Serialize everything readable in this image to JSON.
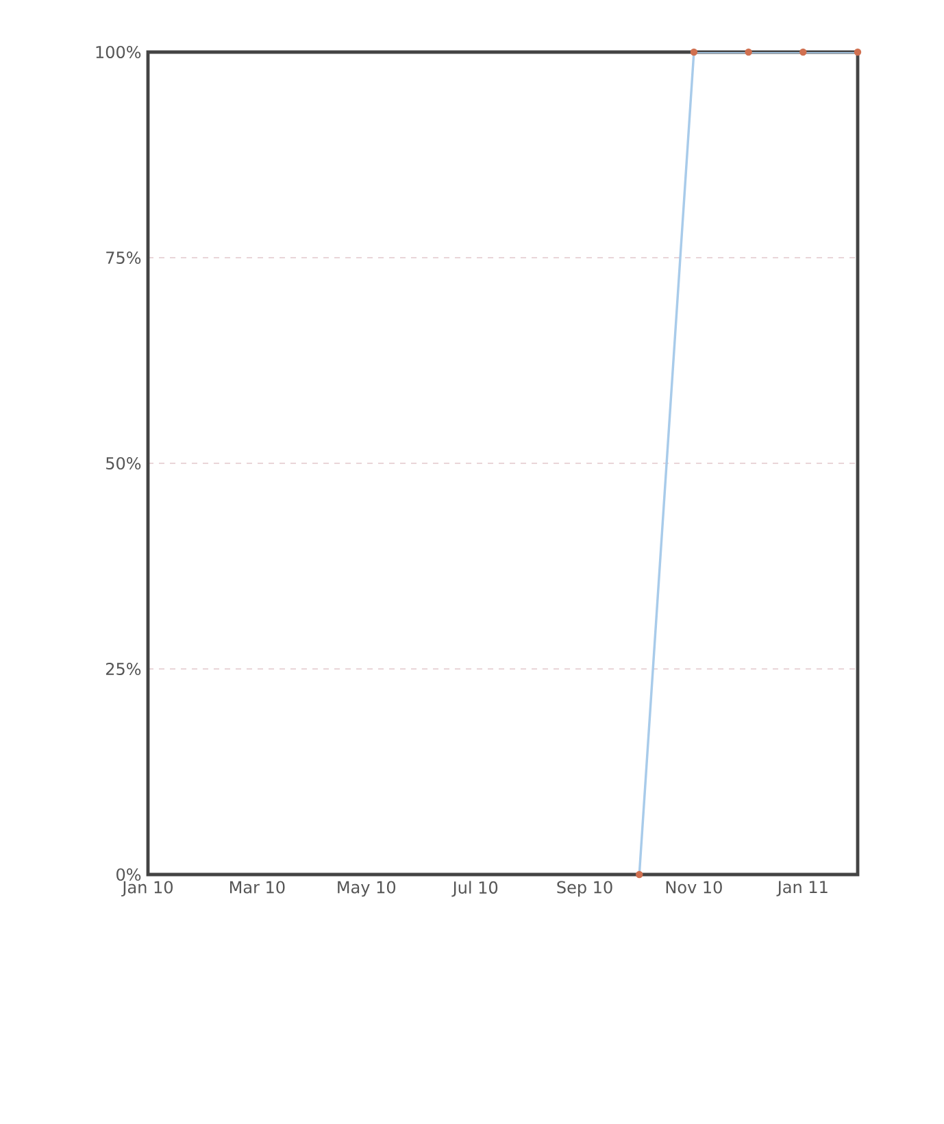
{
  "chart_data": {
    "type": "line",
    "x": [
      "2010-10",
      "2010-11",
      "2010-12",
      "2011-01",
      "2011-02"
    ],
    "series": [
      {
        "color": "#a8cbea",
        "values": [
          0,
          100,
          100,
          100,
          100
        ]
      }
    ],
    "xlim": [
      "2010-01",
      "2011-02"
    ],
    "xticks": [
      {
        "value": "2010-01",
        "label": "Jan 10"
      },
      {
        "value": "2010-03",
        "label": "Mar 10"
      },
      {
        "value": "2010-05",
        "label": "May 10"
      },
      {
        "value": "2010-07",
        "label": "Jul 10"
      },
      {
        "value": "2010-09",
        "label": "Sep 10"
      },
      {
        "value": "2010-11",
        "label": "Nov 10"
      },
      {
        "value": "2011-01",
        "label": "Jan 11"
      }
    ],
    "ylim": [
      0,
      100
    ],
    "yticks": [
      {
        "value": 0,
        "label": "0%"
      },
      {
        "value": 25,
        "label": "25%"
      },
      {
        "value": 50,
        "label": "50%"
      },
      {
        "value": 75,
        "label": "75%"
      },
      {
        "value": 100,
        "label": "100%"
      }
    ],
    "grid": "y",
    "marker": "circle",
    "line_style": "solid"
  }
}
